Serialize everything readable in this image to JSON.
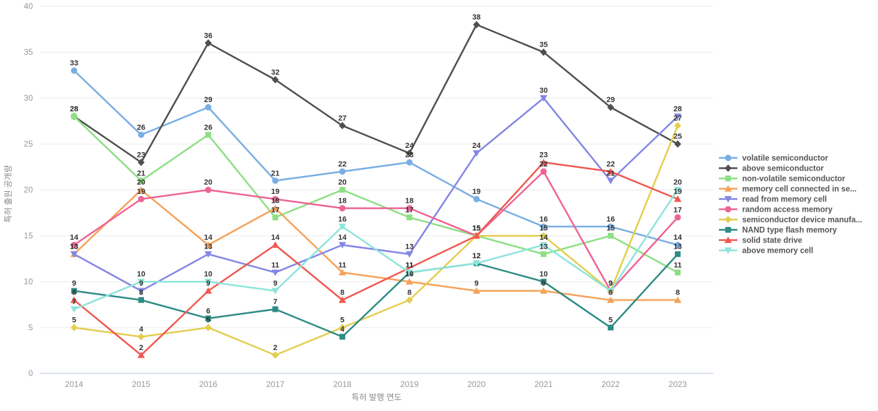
{
  "chart_data": {
    "type": "line",
    "title": "",
    "xlabel": "특허 발행 연도",
    "ylabel": "특허 출원 공개량",
    "categories": [
      "2014",
      "2015",
      "2016",
      "2017",
      "2018",
      "2019",
      "2020",
      "2021",
      "2022",
      "2023"
    ],
    "ylim": [
      0,
      40
    ],
    "ytick_step": 5,
    "grid": true,
    "legend_position": "right",
    "series": [
      {
        "name": "volatile semiconductor",
        "color": "#79AEE3",
        "marker": "circle",
        "values": [
          33,
          26,
          29,
          21,
          22,
          23,
          19,
          16,
          16,
          14
        ]
      },
      {
        "name": "above semiconductor",
        "color": "#4F4F4F",
        "marker": "diamond",
        "values": [
          28,
          23,
          36,
          32,
          27,
          24,
          38,
          35,
          29,
          25
        ]
      },
      {
        "name": "non-volatile semiconductor",
        "color": "#8DDF84",
        "marker": "square",
        "values": [
          28,
          21,
          26,
          17,
          20,
          17,
          15,
          13,
          15,
          11
        ]
      },
      {
        "name": "memory cell connected in se...",
        "color": "#F5A259",
        "marker": "triangle-up",
        "values": [
          13,
          20,
          14,
          18,
          11,
          10,
          9,
          9,
          8,
          8
        ]
      },
      {
        "name": "read from memory cell",
        "color": "#8486E4",
        "marker": "triangle-down",
        "values": [
          13,
          9,
          13,
          11,
          14,
          13,
          24,
          30,
          21,
          28
        ]
      },
      {
        "name": "random access memory",
        "color": "#EE6395",
        "marker": "circle",
        "values": [
          14,
          19,
          20,
          19,
          18,
          18,
          15,
          22,
          9,
          17
        ]
      },
      {
        "name": "semiconductor device manufa...",
        "color": "#E3CE4F",
        "marker": "diamond",
        "values": [
          5,
          4,
          5,
          2,
          5,
          8,
          15,
          15,
          9,
          27
        ]
      },
      {
        "name": "NAND type flash memory",
        "color": "#2E8B85",
        "marker": "square",
        "values": [
          9,
          8,
          6,
          7,
          4,
          11,
          12,
          10,
          5,
          13
        ]
      },
      {
        "name": "solid state drive",
        "color": "#EF5850",
        "marker": "triangle-up",
        "values": [
          8,
          2,
          9,
          14,
          8,
          null,
          15,
          23,
          22,
          19
        ]
      },
      {
        "name": "above memory cell",
        "color": "#8EE4DC",
        "marker": "triangle-down",
        "values": [
          7,
          10,
          10,
          9,
          16,
          11,
          12,
          14,
          9,
          20
        ]
      }
    ]
  },
  "style": {
    "grid_color": "#ebebeb",
    "zero_line_color": "#c9d4ee",
    "tick_color": "#999999",
    "axis_title_color": "#888888",
    "data_label_color": "#333333",
    "legend_text_color": "#555555",
    "background": "#ffffff"
  }
}
